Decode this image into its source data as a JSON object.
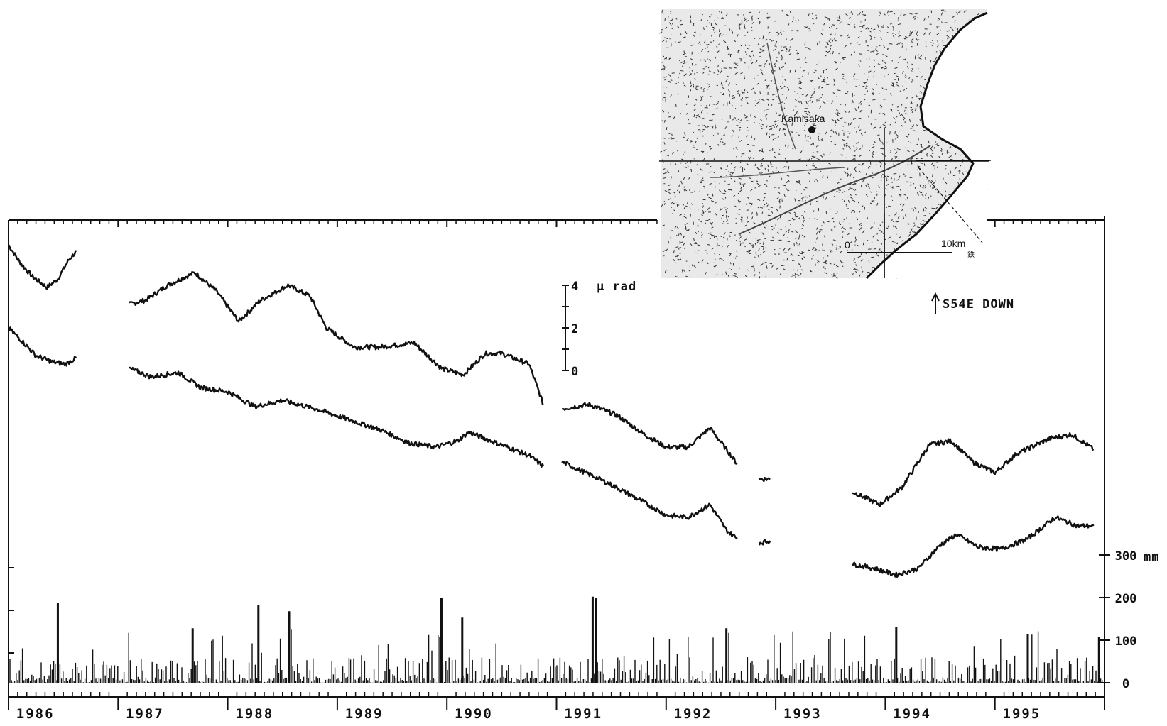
{
  "chart_data": {
    "type": "line",
    "title": "",
    "xlabel": "",
    "ylabel": "",
    "x_years": [
      "1986",
      "1987",
      "1988",
      "1989",
      "1990",
      "1991",
      "1992",
      "1993",
      "1994",
      "1995"
    ],
    "xlim": [
      1986.0,
      1996.0
    ],
    "tilt_scale": {
      "ticks": [
        "4",
        "2",
        "0"
      ],
      "unit": "μ rad",
      "range": [
        0,
        4
      ]
    },
    "direction_label": "S54E DOWN",
    "tilt_series": [
      {
        "segments": [
          [
            [
              1986.0,
              5.9
            ],
            [
              1986.1,
              5.1
            ],
            [
              1986.22,
              4.4
            ],
            [
              1986.35,
              3.9
            ],
            [
              1986.45,
              4.3
            ],
            [
              1986.55,
              5.2
            ],
            [
              1986.62,
              5.6
            ]
          ],
          [
            [
              1987.1,
              3.1
            ],
            [
              1987.25,
              3.3
            ],
            [
              1987.45,
              4.0
            ],
            [
              1987.7,
              4.6
            ],
            [
              1987.9,
              3.7
            ],
            [
              1988.1,
              2.3
            ],
            [
              1988.3,
              3.3
            ],
            [
              1988.55,
              4.0
            ],
            [
              1988.75,
              3.5
            ],
            [
              1988.9,
              2.0
            ],
            [
              1989.15,
              1.1
            ],
            [
              1989.4,
              1.1
            ],
            [
              1989.7,
              1.3
            ],
            [
              1989.95,
              0.1
            ],
            [
              1990.15,
              -0.2
            ],
            [
              1990.35,
              0.8
            ],
            [
              1990.5,
              0.8
            ],
            [
              1990.75,
              0.3
            ],
            [
              1990.88,
              -1.6
            ]
          ],
          [
            [
              1991.05,
              -1.8
            ],
            [
              1991.3,
              -1.6
            ],
            [
              1991.55,
              -2.1
            ],
            [
              1991.8,
              -3.0
            ],
            [
              1992.0,
              -3.6
            ],
            [
              1992.2,
              -3.6
            ],
            [
              1992.4,
              -2.7
            ],
            [
              1992.55,
              -3.7
            ],
            [
              1992.65,
              -4.4
            ]
          ],
          [
            [
              1992.85,
              -5.1
            ],
            [
              1992.95,
              -5.1
            ]
          ],
          [
            [
              1993.7,
              -5.7
            ],
            [
              1993.95,
              -6.3
            ],
            [
              1994.15,
              -5.5
            ],
            [
              1994.4,
              -3.5
            ],
            [
              1994.6,
              -3.3
            ],
            [
              1994.8,
              -4.3
            ],
            [
              1995.0,
              -4.8
            ],
            [
              1995.2,
              -3.9
            ],
            [
              1995.5,
              -3.2
            ],
            [
              1995.7,
              -3.0
            ],
            [
              1995.9,
              -3.7
            ]
          ]
        ]
      },
      {
        "segments": [
          [
            [
              1986.0,
              2.0
            ],
            [
              1986.1,
              1.5
            ],
            [
              1986.25,
              0.7
            ],
            [
              1986.4,
              0.4
            ],
            [
              1986.52,
              0.3
            ],
            [
              1986.62,
              0.6
            ]
          ],
          [
            [
              1987.1,
              0.1
            ],
            [
              1987.3,
              -0.3
            ],
            [
              1987.55,
              -0.1
            ],
            [
              1987.75,
              -0.8
            ],
            [
              1988.0,
              -1.0
            ],
            [
              1988.25,
              -1.7
            ],
            [
              1988.5,
              -1.4
            ],
            [
              1988.8,
              -1.8
            ],
            [
              1989.1,
              -2.3
            ],
            [
              1989.4,
              -2.8
            ],
            [
              1989.65,
              -3.4
            ],
            [
              1989.9,
              -3.6
            ],
            [
              1990.1,
              -3.3
            ],
            [
              1990.2,
              -2.9
            ],
            [
              1990.3,
              -3.1
            ],
            [
              1990.55,
              -3.6
            ],
            [
              1990.75,
              -4.0
            ],
            [
              1990.88,
              -4.5
            ]
          ],
          [
            [
              1991.05,
              -4.3
            ],
            [
              1991.35,
              -5.0
            ],
            [
              1991.55,
              -5.5
            ],
            [
              1991.8,
              -6.2
            ],
            [
              1992.0,
              -6.8
            ],
            [
              1992.2,
              -6.9
            ],
            [
              1992.4,
              -6.3
            ],
            [
              1992.55,
              -7.5
            ],
            [
              1992.65,
              -7.9
            ]
          ],
          [
            [
              1992.85,
              -8.1
            ],
            [
              1992.95,
              -8.0
            ]
          ],
          [
            [
              1993.7,
              -9.1
            ],
            [
              1993.9,
              -9.3
            ],
            [
              1994.1,
              -9.6
            ],
            [
              1994.3,
              -9.3
            ],
            [
              1994.5,
              -8.2
            ],
            [
              1994.65,
              -7.7
            ],
            [
              1994.85,
              -8.3
            ],
            [
              1995.05,
              -8.4
            ],
            [
              1995.3,
              -7.9
            ],
            [
              1995.55,
              -6.9
            ],
            [
              1995.75,
              -7.3
            ],
            [
              1995.9,
              -7.3
            ]
          ]
        ]
      }
    ],
    "precipitation": {
      "unit": "mm",
      "ticks": [
        "0",
        "100",
        "200",
        "300"
      ],
      "ylim": [
        0,
        300
      ],
      "notable_peaks": [
        {
          "x": 1986.45,
          "value": 187
        },
        {
          "x": 1987.68,
          "value": 128
        },
        {
          "x": 1988.28,
          "value": 182
        },
        {
          "x": 1988.56,
          "value": 168
        },
        {
          "x": 1989.95,
          "value": 200
        },
        {
          "x": 1990.14,
          "value": 153
        },
        {
          "x": 1991.33,
          "value": 202
        },
        {
          "x": 1991.36,
          "value": 200
        },
        {
          "x": 1992.55,
          "value": 128
        },
        {
          "x": 1994.1,
          "value": 131
        },
        {
          "x": 1995.3,
          "value": 115
        },
        {
          "x": 1995.95,
          "value": 108
        }
      ]
    }
  },
  "map_inset": {
    "station_label": "Kamisaka",
    "scale_start": "0",
    "scale_end": "10km",
    "scale_mark": "鉄"
  }
}
